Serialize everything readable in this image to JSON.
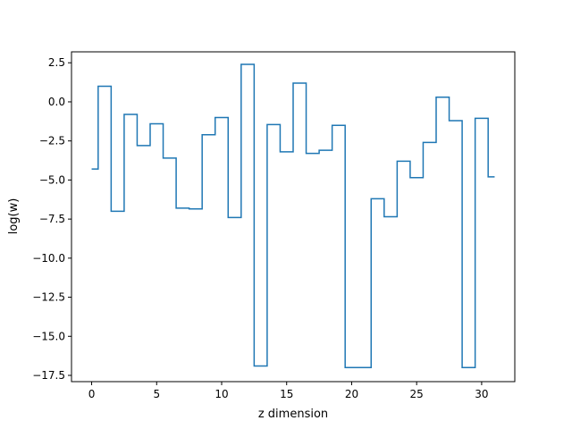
{
  "chart_data": {
    "type": "line",
    "drawstyle": "steps-mid",
    "title": "",
    "xlabel": "z dimension",
    "ylabel": "log(w)",
    "xlim": [
      -1.55,
      32.55
    ],
    "ylim": [
      -17.9,
      3.2
    ],
    "xticks": [
      0,
      5,
      10,
      15,
      20,
      25,
      30
    ],
    "xtick_labels": [
      "0",
      "5",
      "10",
      "15",
      "20",
      "25",
      "30"
    ],
    "yticks": [
      2.5,
      0.0,
      -2.5,
      -5.0,
      -7.5,
      -10.0,
      -12.5,
      -15.0,
      -17.5
    ],
    "ytick_labels": [
      "2.5",
      "0.0",
      "−2.5",
      "−5.0",
      "−7.5",
      "−10.0",
      "−12.5",
      "−15.0",
      "−17.5"
    ],
    "grid": false,
    "series": [
      {
        "color": "#1f77b4",
        "x": [
          0,
          1,
          2,
          3,
          4,
          5,
          6,
          7,
          8,
          9,
          10,
          11,
          12,
          13,
          14,
          15,
          16,
          17,
          18,
          19,
          20,
          21,
          22,
          23,
          24,
          25,
          26,
          27,
          28,
          29,
          30,
          31
        ],
        "y": [
          -4.3,
          1.0,
          -7.0,
          -0.8,
          -2.8,
          -1.4,
          -3.6,
          -6.8,
          -6.85,
          -2.1,
          -1.0,
          -7.4,
          2.4,
          -16.9,
          -1.45,
          -3.2,
          1.2,
          -3.3,
          -3.1,
          -1.5,
          -17.0,
          -17.0,
          -6.2,
          -7.35,
          -3.8,
          -4.85,
          -2.6,
          0.3,
          -1.2,
          -17.0,
          -1.05,
          -4.8
        ]
      }
    ]
  }
}
